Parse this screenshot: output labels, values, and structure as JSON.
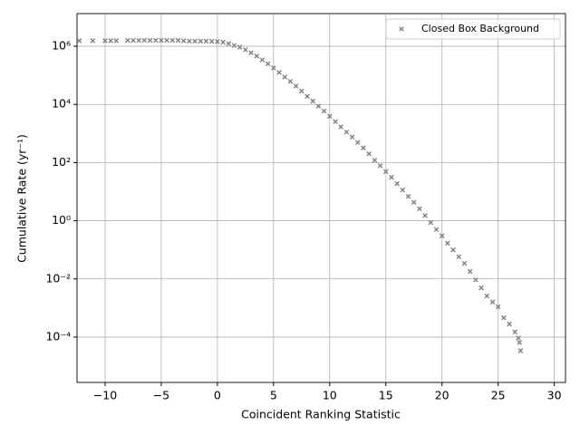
{
  "chart_data": {
    "type": "scatter",
    "xlabel": "Coincident Ranking Statistic",
    "ylabel": "Cumulative Rate (yr⁻¹)",
    "log_y": true,
    "grid": true,
    "legend_position": "upper right",
    "series": [
      {
        "name": "Closed Box Background",
        "color": "#808080",
        "x": [
          -12.3,
          -11.1,
          -10,
          -9.5,
          -9,
          -8,
          -7.5,
          -7,
          -6.5,
          -6,
          -5.5,
          -5,
          -4.5,
          -4,
          -3.5,
          -3,
          -2.5,
          -2,
          -1.5,
          -1,
          -0.5,
          0,
          0.5,
          1,
          1.5,
          2,
          2.5,
          3,
          3.5,
          4,
          4.5,
          5,
          5.5,
          6,
          6.5,
          7,
          7.5,
          8,
          8.5,
          9,
          9.5,
          10,
          10.5,
          11,
          11.5,
          12,
          12.5,
          13,
          13.5,
          14,
          14.5,
          15,
          15.5,
          16,
          16.5,
          17,
          17.5,
          18,
          18.5,
          19,
          19.5,
          20,
          20.5,
          21,
          21.5,
          22,
          22.5,
          23,
          23.5,
          24,
          24.5,
          25,
          25.5,
          26,
          26.5,
          26.8,
          26.9,
          27
        ],
        "values": [
          1550000,
          1550000,
          1550000,
          1550000,
          1550000,
          1600000,
          1600000,
          1600000,
          1600000,
          1600000,
          1600000,
          1600000,
          1600000,
          1600000,
          1600000,
          1550000,
          1500000,
          1500000,
          1500000,
          1500000,
          1480000,
          1440000,
          1380000,
          1230000,
          1070000,
          930000,
          760000,
          600000,
          460000,
          340000,
          250000,
          180000,
          126000,
          87000,
          62000,
          43000,
          29000,
          19000,
          13000,
          8700,
          5900,
          3900,
          2570,
          1700,
          1120,
          760,
          490,
          320,
          200,
          120,
          78,
          49,
          31,
          19,
          11.5,
          6.9,
          4.3,
          2.6,
          1.5,
          0.87,
          0.5,
          0.3,
          0.17,
          0.1,
          0.058,
          0.034,
          0.018,
          0.0093,
          0.0049,
          0.0026,
          0.0016,
          0.0011,
          0.00046,
          0.00028,
          0.00015,
          9.3e-05,
          6.5e-05,
          3.4e-05
        ]
      }
    ],
    "xlim": [
      -12.5,
      31
    ],
    "xticks": [
      {
        "value": -10,
        "label": "−10"
      },
      {
        "value": -5,
        "label": "−5"
      },
      0,
      5,
      10,
      15,
      20,
      25,
      30
    ],
    "ylim": [
      2.75e-06,
      13300000
    ],
    "yticks": [
      {
        "value": 0.0001,
        "label": "10⁻⁴"
      },
      {
        "value": 0.01,
        "label": "10⁻²"
      },
      {
        "value": 1,
        "label": "10⁰"
      },
      {
        "value": 100,
        "label": "10²"
      },
      {
        "value": 10000,
        "label": "10⁴"
      },
      {
        "value": 1000000,
        "label": "10⁶"
      }
    ]
  }
}
